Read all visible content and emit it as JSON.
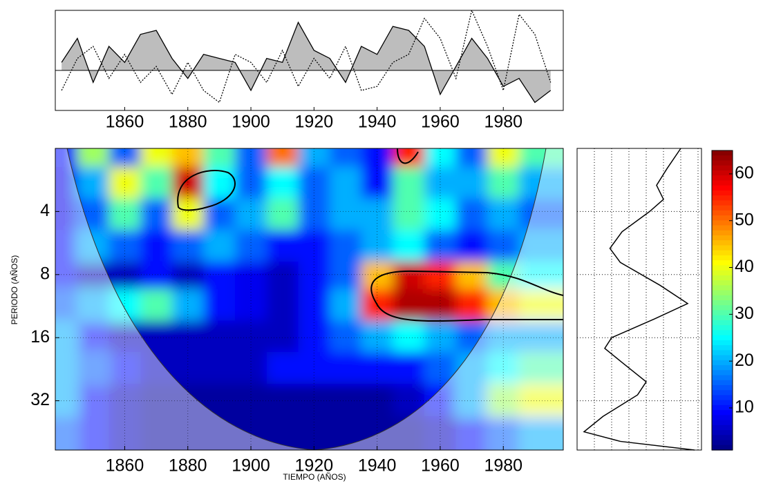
{
  "chart_data": [
    {
      "type": "line",
      "x": [
        1840,
        1845,
        1850,
        1855,
        1860,
        1865,
        1870,
        1875,
        1880,
        1885,
        1890,
        1895,
        1900,
        1905,
        1910,
        1915,
        1920,
        1925,
        1930,
        1935,
        1940,
        1945,
        1950,
        1955,
        1960,
        1965,
        1970,
        1975,
        1980,
        1985,
        1990,
        1995
      ],
      "series": [
        {
          "color": "#000000",
          "fill": "#bdbdbd",
          "dash": false,
          "values": [
            0.2,
            0.8,
            -0.3,
            0.6,
            0.2,
            0.9,
            1.0,
            0.3,
            -0.2,
            0.4,
            0.3,
            0.2,
            -0.5,
            0.3,
            0.2,
            1.2,
            0.5,
            0.3,
            -0.3,
            0.6,
            0.4,
            1.1,
            1.0,
            0.6,
            -0.6,
            0.1,
            0.8,
            0.3,
            -0.4,
            -0.2,
            -0.8,
            -0.5
          ]
        },
        {
          "color": "#000000",
          "fill": null,
          "dash": true,
          "values": [
            -0.5,
            0.3,
            0.6,
            -0.2,
            0.4,
            -0.3,
            0.1,
            -0.6,
            0.2,
            -0.5,
            -0.8,
            0.4,
            0.2,
            -0.3,
            0.5,
            -0.4,
            0.3,
            -0.2,
            0.6,
            -0.5,
            -0.4,
            0.2,
            0.4,
            1.3,
            0.8,
            -0.2,
            1.5,
            0.6,
            -0.5,
            1.4,
            0.9,
            -0.3
          ]
        }
      ],
      "xlim": [
        1838,
        1999
      ],
      "ylim": [
        -1,
        1.5
      ],
      "xticks": [
        1860,
        1880,
        1900,
        1920,
        1940,
        1960,
        1980
      ]
    },
    {
      "type": "heatmap",
      "xlabel": "TIEMPO  (AÑOS)",
      "ylabel": "PERIODO  (AÑOS)",
      "x": [
        1840,
        1850,
        1860,
        1870,
        1880,
        1890,
        1900,
        1910,
        1920,
        1930,
        1940,
        1950,
        1960,
        1970,
        1980,
        1990
      ],
      "y": [
        2,
        3,
        4,
        6,
        8,
        11,
        16,
        22,
        32,
        45
      ],
      "z": [
        [
          10,
          35,
          15,
          40,
          45,
          30,
          15,
          50,
          20,
          15,
          10,
          55,
          25,
          15,
          40,
          30
        ],
        [
          8,
          20,
          40,
          30,
          60,
          25,
          15,
          25,
          15,
          20,
          10,
          30,
          20,
          20,
          30,
          20
        ],
        [
          8,
          15,
          30,
          15,
          40,
          15,
          20,
          30,
          15,
          20,
          20,
          30,
          25,
          15,
          20,
          15
        ],
        [
          10,
          20,
          15,
          10,
          15,
          20,
          15,
          10,
          10,
          15,
          20,
          25,
          15,
          10,
          15,
          20
        ],
        [
          10,
          5,
          5,
          10,
          5,
          10,
          8,
          5,
          10,
          15,
          45,
          60,
          55,
          45,
          30,
          25
        ],
        [
          15,
          20,
          25,
          30,
          20,
          10,
          8,
          5,
          10,
          20,
          55,
          62,
          62,
          55,
          45,
          40
        ],
        [
          20,
          10,
          5,
          5,
          5,
          5,
          5,
          5,
          10,
          15,
          20,
          25,
          20,
          15,
          20,
          20
        ],
        [
          20,
          15,
          10,
          5,
          5,
          5,
          5,
          10,
          10,
          10,
          10,
          10,
          15,
          20,
          25,
          30
        ],
        [
          20,
          10,
          5,
          3,
          3,
          3,
          3,
          3,
          3,
          3,
          3,
          5,
          10,
          20,
          35,
          40
        ],
        [
          15,
          10,
          5,
          3,
          3,
          3,
          3,
          3,
          3,
          3,
          3,
          3,
          5,
          10,
          15,
          20
        ]
      ],
      "xlim": [
        1838,
        1999
      ],
      "ylim": [
        2,
        55
      ],
      "ylog": 2,
      "xticks": [
        1860,
        1880,
        1900,
        1920,
        1940,
        1960,
        1980
      ],
      "yticks": [
        4,
        8,
        16,
        32
      ],
      "colormap": "jet",
      "clim": [
        1,
        65
      ],
      "cticks": [
        10,
        20,
        30,
        40,
        50,
        60
      ]
    },
    {
      "type": "line",
      "y": [
        2,
        2.5,
        3,
        3.5,
        4,
        5,
        6,
        7,
        9,
        11,
        13,
        16,
        18,
        21,
        26,
        30,
        38,
        45,
        50,
        55
      ],
      "values": [
        6,
        5.2,
        4.6,
        5.0,
        4.2,
        2.6,
        1.9,
        2.5,
        4.8,
        6.4,
        4.5,
        2.0,
        1.6,
        2.6,
        4.0,
        3.5,
        1.5,
        0.4,
        2.5,
        6.8
      ],
      "color": "#000000",
      "xlim": [
        0,
        7.2
      ],
      "xticks": [
        1,
        2,
        3,
        4,
        5,
        6,
        7
      ],
      "ylim": [
        2,
        55
      ],
      "ylog": 2,
      "yticks": [
        4,
        8,
        16,
        32
      ],
      "grid": true
    }
  ]
}
